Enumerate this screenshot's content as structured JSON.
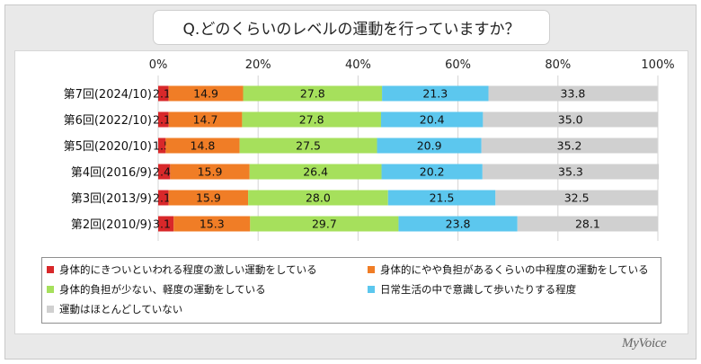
{
  "title": "Q.どのくらいのレベルの運動を行っていますか？",
  "logo": "MyVoice",
  "colors": {
    "s1": "#d8282a",
    "s2": "#f07d26",
    "s3": "#a6e05c",
    "s4": "#5cc7ee",
    "s5": "#d0d0d0"
  },
  "legend": [
    {
      "label": "身体的にきついといわれる程度の激しい運動をしている",
      "color": "#d8282a"
    },
    {
      "label": "身体的にやや負担があるくらいの中程度の運動をしている",
      "color": "#f07d26"
    },
    {
      "label": "身体的負担が少ない、軽度の運動をしている",
      "color": "#a6e05c"
    },
    {
      "label": "日常生活の中で意識して歩いたりする程度",
      "color": "#5cc7ee"
    },
    {
      "label": "運動はほとんどしていない",
      "color": "#d0d0d0"
    }
  ],
  "chart_data": {
    "type": "bar",
    "stacked": true,
    "orientation": "horizontal",
    "xlim": [
      0,
      100
    ],
    "x_ticks": [
      "0%",
      "20%",
      "40%",
      "60%",
      "80%",
      "100%"
    ],
    "categories": [
      "第7回(2024/10)",
      "第6回(2022/10)",
      "第5回(2020/10)",
      "第4回(2016/9)",
      "第3回(2013/9)",
      "第2回(2010/9)"
    ],
    "series": [
      {
        "name": "身体的にきついといわれる程度の激しい運動をしている",
        "color": "#d8282a",
        "values": [
          2.1,
          2.1,
          1.5,
          2.4,
          2.1,
          3.1
        ]
      },
      {
        "name": "身体的にやや負担があるくらいの中程度の運動をしている",
        "color": "#f07d26",
        "values": [
          14.9,
          14.7,
          14.8,
          15.9,
          15.9,
          15.3
        ]
      },
      {
        "name": "身体的負担が少ない、軽度の運動をしている",
        "color": "#a6e05c",
        "values": [
          27.8,
          27.8,
          27.5,
          26.4,
          28.0,
          29.7
        ]
      },
      {
        "name": "日常生活の中で意識して歩いたりする程度",
        "color": "#5cc7ee",
        "values": [
          21.3,
          20.4,
          20.9,
          20.2,
          21.5,
          23.8
        ]
      },
      {
        "name": "運動はほとんどしていない",
        "color": "#d0d0d0",
        "values": [
          33.8,
          35.0,
          35.2,
          35.3,
          32.5,
          28.1
        ]
      }
    ],
    "grid": true,
    "legend_position": "bottom"
  }
}
